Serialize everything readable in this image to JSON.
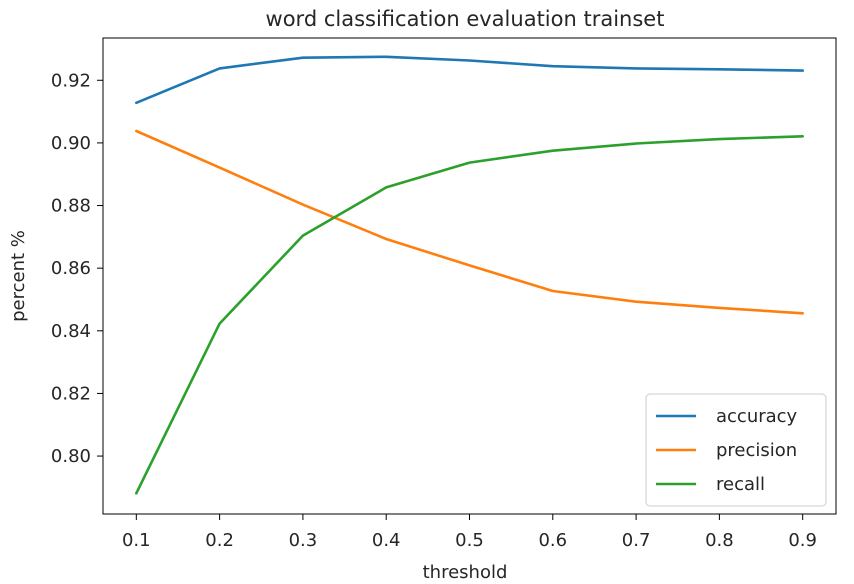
{
  "chart_data": {
    "type": "line",
    "title": "word classification evaluation trainset",
    "xlabel": "threshold",
    "ylabel": "percent %",
    "x": [
      0.1,
      0.2,
      0.3,
      0.4,
      0.5,
      0.6,
      0.7,
      0.8,
      0.9
    ],
    "x_ticks": [
      "0.1",
      "0.2",
      "0.3",
      "0.4",
      "0.5",
      "0.6",
      "0.7",
      "0.8",
      "0.9"
    ],
    "y_ticks": [
      "0.80",
      "0.82",
      "0.84",
      "0.86",
      "0.88",
      "0.90",
      "0.92"
    ],
    "y_tick_values": [
      0.8,
      0.82,
      0.84,
      0.86,
      0.88,
      0.9,
      0.92
    ],
    "xlim": [
      0.06,
      0.94
    ],
    "ylim": [
      0.7815,
      0.9335
    ],
    "grid": false,
    "legend_position": "lower-right",
    "series": [
      {
        "name": "accuracy",
        "color": "#1f77b4",
        "values": [
          0.9128,
          0.9238,
          0.9272,
          0.9275,
          0.9263,
          0.9245,
          0.9238,
          0.9235,
          0.9231
        ]
      },
      {
        "name": "precision",
        "color": "#ff7f0e",
        "values": [
          0.9038,
          0.8921,
          0.8803,
          0.8693,
          0.8609,
          0.8527,
          0.8493,
          0.8473,
          0.8456
        ]
      },
      {
        "name": "recall",
        "color": "#2ca02c",
        "values": [
          0.7881,
          0.8423,
          0.8704,
          0.8858,
          0.8937,
          0.8975,
          0.8998,
          0.9012,
          0.9021
        ]
      }
    ]
  }
}
